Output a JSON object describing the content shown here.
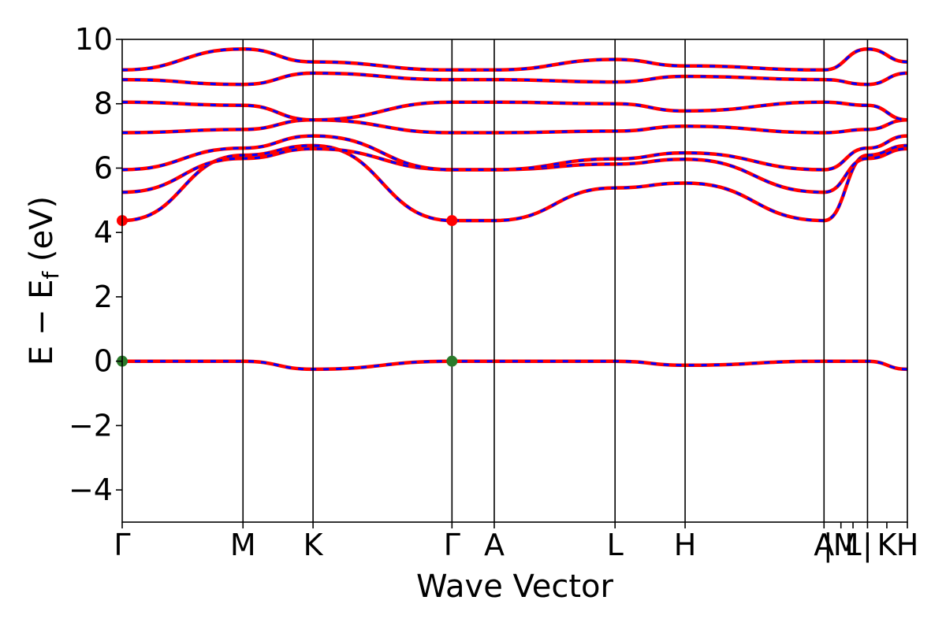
{
  "chart_data": {
    "type": "line",
    "xlabel": "Wave Vector",
    "ylabel": "E − E",
    "ylabel_sub": "f",
    "ylabel_unit": " (eV)",
    "ylim": [
      -5,
      10
    ],
    "yticks": [
      -4,
      -2,
      0,
      2,
      4,
      6,
      8,
      10
    ],
    "ytick_labels": [
      "−4",
      "−2",
      "0",
      "2",
      "4",
      "6",
      "8",
      "10"
    ],
    "x_range": [
      0,
      6.5
    ],
    "kpoints": [
      {
        "label": "Γ",
        "x": 0.0
      },
      {
        "label": "M",
        "x": 1.0
      },
      {
        "label": "K",
        "x": 1.58
      },
      {
        "label": "Γ",
        "x": 2.73
      },
      {
        "label": "A",
        "x": 3.08
      },
      {
        "label": "L",
        "x": 4.08
      },
      {
        "label": "H",
        "x": 4.66
      },
      {
        "label": "A",
        "x": 5.81
      },
      {
        "label": "|M",
        "x": 5.95
      },
      {
        "label": "L",
        "x": 6.05
      },
      {
        "label": "|",
        "x": 6.17
      },
      {
        "label": "K",
        "x": 6.33
      },
      {
        "label": "H",
        "x": 6.5
      }
    ],
    "segment_boundaries": [
      0.0,
      1.0,
      1.58,
      2.73,
      3.08,
      4.08,
      4.66,
      5.81,
      6.17,
      6.5
    ],
    "series": [
      {
        "values": [
          4.37,
          6.4,
          6.7,
          4.37
        ]
      },
      {
        "values": [
          5.25,
          6.3,
          6.6,
          5.95
        ]
      },
      {
        "values": [
          5.95,
          6.62,
          7.0,
          5.95
        ]
      },
      {
        "values": [
          7.1,
          7.2,
          7.5,
          7.1
        ]
      },
      {
        "values": [
          8.05,
          7.95,
          7.5,
          8.05
        ]
      },
      {
        "values": [
          8.75,
          8.6,
          8.95,
          8.75
        ]
      },
      {
        "values": [
          9.05,
          9.7,
          9.3,
          9.05
        ]
      },
      {
        "values": [
          0.0,
          0.0,
          -0.25,
          0.0
        ]
      }
    ],
    "series_colors": {
      "primary": "#ff0000",
      "dash": "#0000ff"
    },
    "markers": [
      {
        "x": 0.0,
        "y": 4.37,
        "color": "#ff0000"
      },
      {
        "x": 2.73,
        "y": 4.37,
        "color": "#ff0000"
      },
      {
        "x": 0.0,
        "y": 0.0,
        "color": "#2a7a2a"
      },
      {
        "x": 2.73,
        "y": 0.0,
        "color": "#2a7a2a"
      }
    ],
    "grid": false,
    "legend": "none"
  }
}
